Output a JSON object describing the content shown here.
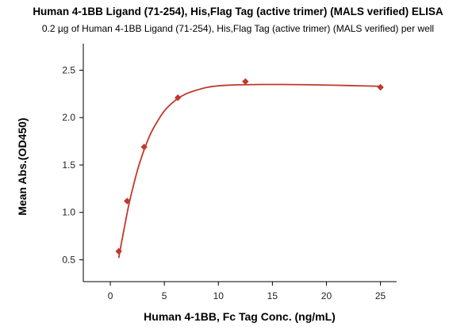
{
  "title": "Human 4-1BB Ligand (71-254), His,Flag Tag (active trimer) (MALS verified) ELISA",
  "subtitle": "0.2 µg of Human 4-1BB Ligand (71-254), His,Flag Tag (active trimer) (MALS verified) per well",
  "chart_data": {
    "type": "scatter",
    "title": "Human 4-1BB Ligand (71-254), His,Flag Tag (active trimer) (MALS verified) ELISA",
    "subtitle": "0.2 µg of Human 4-1BB Ligand (71-254), His,Flag Tag (active trimer) (MALS verified) per well",
    "xlabel": "Human 4-1BB, Fc Tag Conc. (ng/mL)",
    "ylabel": "Mean Abs.(OD450)",
    "xlim": [
      -2.5,
      26.5
    ],
    "ylim": [
      0.27,
      2.78
    ],
    "xticks": [
      0,
      5,
      10,
      15,
      20,
      25
    ],
    "yticks": [
      0.5,
      1.0,
      1.5,
      2.0,
      2.5
    ],
    "xtick_labels": [
      "0",
      "5",
      "10",
      "15",
      "20",
      "25"
    ],
    "ytick_labels": [
      "0.5",
      "1.0",
      "1.5",
      "2.0",
      "2.5"
    ],
    "grid": false,
    "marker_color": "#c0392b",
    "line_color": "#c0392b",
    "points": [
      {
        "x": 0.78,
        "y": 0.59
      },
      {
        "x": 1.56,
        "y": 1.12
      },
      {
        "x": 3.13,
        "y": 1.69
      },
      {
        "x": 6.25,
        "y": 2.21
      },
      {
        "x": 12.5,
        "y": 2.38
      },
      {
        "x": 25,
        "y": 2.32
      }
    ],
    "fit_curve": {
      "x": [
        0.78,
        1.0,
        1.25,
        1.5,
        1.75,
        2.0,
        2.5,
        3.0,
        3.5,
        4.0,
        5.0,
        6.0,
        7.0,
        8.0,
        9.0,
        10.0,
        11.0,
        12.0,
        14.0,
        16.0,
        18.0,
        20.0,
        22.0,
        25.0
      ],
      "y": [
        0.52,
        0.66,
        0.81,
        0.96,
        1.1,
        1.22,
        1.44,
        1.62,
        1.77,
        1.89,
        2.07,
        2.18,
        2.25,
        2.29,
        2.32,
        2.335,
        2.342,
        2.346,
        2.349,
        2.349,
        2.347,
        2.343,
        2.338,
        2.33
      ]
    }
  }
}
